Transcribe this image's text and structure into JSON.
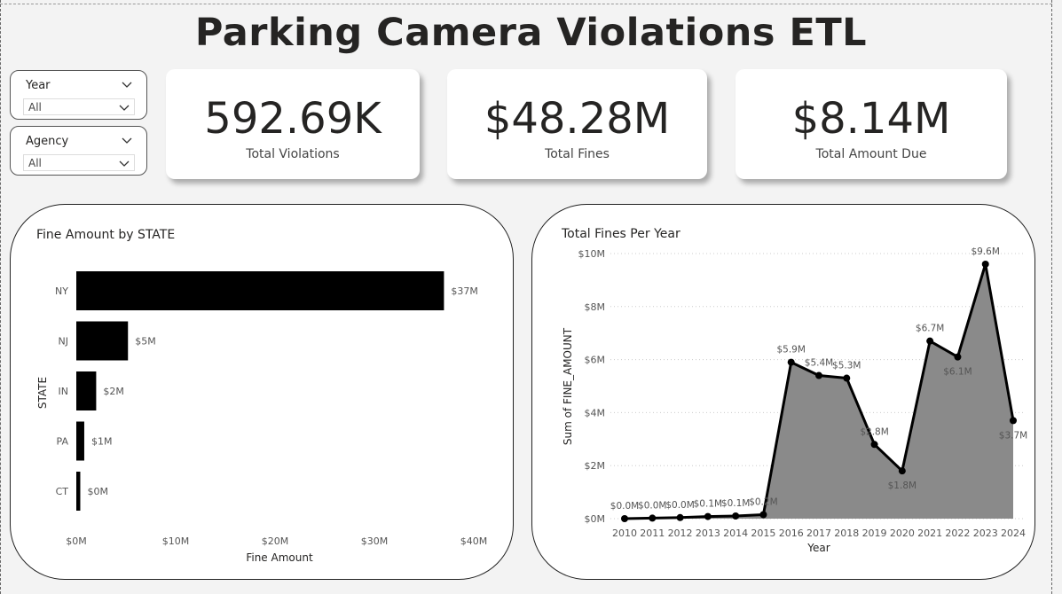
{
  "page": {
    "title": "Parking Camera Violations ETL"
  },
  "slicers": [
    {
      "label": "Year",
      "value": "All"
    },
    {
      "label": "Agency",
      "value": "All"
    }
  ],
  "cards": [
    {
      "value": "592.69K",
      "caption": "Total Violations"
    },
    {
      "value": "$48.28M",
      "caption": "Total Fines"
    },
    {
      "value": "$8.14M",
      "caption": "Total Amount Due"
    }
  ],
  "colors": {
    "bar": "#000000",
    "area": "#8a8a8a",
    "line": "#000000",
    "text": "#252423",
    "gridline": "#cccccc"
  },
  "chart_data": [
    {
      "type": "bar",
      "orientation": "horizontal",
      "title": "Fine Amount by STATE",
      "xlabel": "Fine Amount",
      "ylabel": "STATE",
      "categories": [
        "NY",
        "NJ",
        "IN",
        "PA",
        "CT"
      ],
      "values": [
        37000000,
        5200000,
        2000000,
        800000,
        400000
      ],
      "data_labels": [
        "$37M",
        "$5M",
        "$2M",
        "$1M",
        "$0M"
      ],
      "xlim": [
        0,
        40000000
      ],
      "x_ticks": [
        "$0M",
        "$10M",
        "$20M",
        "$30M",
        "$40M"
      ],
      "grid": false
    },
    {
      "type": "area",
      "title": "Total Fines Per Year",
      "xlabel": "Year",
      "ylabel": "Sum of FINE_AMOUNT",
      "x": [
        "2010",
        "2011",
        "2012",
        "2013",
        "2014",
        "2015",
        "2016",
        "2017",
        "2018",
        "2019",
        "2020",
        "2021",
        "2022",
        "2023",
        "2024"
      ],
      "values": [
        0,
        0.02,
        0.04,
        0.08,
        0.1,
        0.15,
        5.9,
        5.4,
        5.3,
        2.8,
        1.8,
        6.7,
        6.1,
        9.6,
        3.7
      ],
      "data_labels": [
        "$0.0M",
        "$0.0M",
        "$0.0M",
        "$0.1M",
        "$0.1M",
        "$0.2M",
        "$5.9M",
        "$5.4M",
        "$5.3M",
        "$2.8M",
        "$1.8M",
        "$6.7M",
        "$6.1M",
        "$9.6M",
        "$3.7M"
      ],
      "units": "$M",
      "ylim": [
        0,
        10
      ],
      "y_ticks": [
        "$0M",
        "$2M",
        "$4M",
        "$6M",
        "$8M",
        "$10M"
      ],
      "grid": true
    }
  ]
}
